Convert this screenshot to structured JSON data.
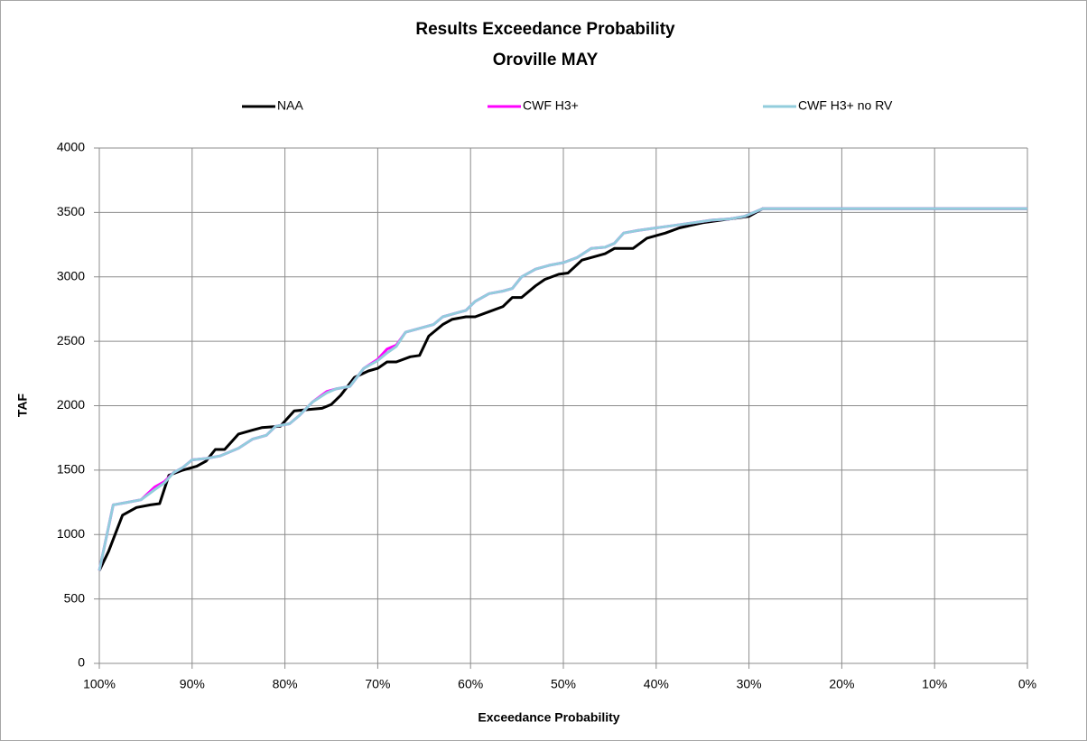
{
  "chart_data": {
    "type": "line",
    "title": "Results Exceedance Probability",
    "subtitle": "Oroville  MAY",
    "x_label": "Exceedance Probability",
    "y_label": "TAF",
    "xlim": [
      100,
      0
    ],
    "xticks": [
      {
        "value": 100,
        "label": "100%"
      },
      {
        "value": 90,
        "label": "90%"
      },
      {
        "value": 80,
        "label": "80%"
      },
      {
        "value": 70,
        "label": "70%"
      },
      {
        "value": 60,
        "label": "60%"
      },
      {
        "value": 50,
        "label": "50%"
      },
      {
        "value": 40,
        "label": "40%"
      },
      {
        "value": 30,
        "label": "30%"
      },
      {
        "value": 20,
        "label": "20%"
      },
      {
        "value": 10,
        "label": "10%"
      },
      {
        "value": 0,
        "label": "0%"
      }
    ],
    "ylim": [
      0,
      4000
    ],
    "yticks": [
      0,
      500,
      1000,
      1500,
      2000,
      2500,
      3000,
      3500,
      4000
    ],
    "grid": true,
    "legend": "top",
    "series": [
      {
        "name": "NAA",
        "color": "#000000",
        "x": [
          100,
          99,
          97.5,
          96,
          94.5,
          93.5,
          92.5,
          91,
          89.5,
          88.5,
          87.5,
          86.5,
          85,
          83.5,
          82.5,
          80.5,
          79,
          77.5,
          76,
          75,
          74,
          72.5,
          71,
          70,
          69,
          68,
          66.5,
          65.5,
          64.5,
          63,
          62,
          60.5,
          59.5,
          58,
          56.5,
          55.5,
          54.5,
          53,
          52,
          50.5,
          49.5,
          48,
          46.5,
          45.5,
          44.5,
          42.5,
          41,
          39,
          37.5,
          35,
          33,
          31,
          30,
          28.5,
          0
        ],
        "values": [
          720,
          870,
          1150,
          1210,
          1230,
          1240,
          1460,
          1500,
          1530,
          1570,
          1660,
          1660,
          1780,
          1810,
          1830,
          1840,
          1960,
          1970,
          1980,
          2010,
          2080,
          2220,
          2270,
          2290,
          2340,
          2340,
          2380,
          2390,
          2540,
          2630,
          2670,
          2690,
          2690,
          2730,
          2770,
          2840,
          2840,
          2930,
          2980,
          3020,
          3030,
          3130,
          3160,
          3180,
          3220,
          3220,
          3300,
          3340,
          3380,
          3420,
          3440,
          3460,
          3470,
          3530,
          3530
        ]
      },
      {
        "name": "CWF H3+",
        "color": "#ff00ff",
        "x": [
          100,
          98.5,
          97,
          95.5,
          94,
          93,
          92,
          91,
          90,
          88.5,
          87,
          85,
          83.5,
          82,
          81,
          79.5,
          78.5,
          77,
          75.5,
          74.5,
          73,
          71.5,
          70,
          69,
          68,
          67,
          65.5,
          64,
          63,
          61.5,
          60.5,
          59.5,
          58,
          56.5,
          55.5,
          54.5,
          53,
          51.5,
          50,
          48.5,
          47,
          45.5,
          44.5,
          43.5,
          42,
          40,
          38,
          36,
          34,
          32,
          30.5,
          28.5,
          0
        ],
        "values": [
          720,
          1230,
          1250,
          1270,
          1370,
          1410,
          1480,
          1520,
          1580,
          1590,
          1610,
          1670,
          1740,
          1770,
          1840,
          1860,
          1920,
          2030,
          2110,
          2130,
          2150,
          2290,
          2360,
          2440,
          2470,
          2570,
          2600,
          2630,
          2690,
          2720,
          2740,
          2810,
          2870,
          2890,
          2910,
          3000,
          3060,
          3090,
          3110,
          3150,
          3220,
          3230,
          3260,
          3340,
          3360,
          3380,
          3400,
          3420,
          3440,
          3450,
          3470,
          3530,
          3530
        ]
      },
      {
        "name": "CWF H3+ no RV",
        "color": "#92cddc",
        "x": [
          100,
          98.5,
          97,
          95.5,
          94,
          93,
          92,
          91,
          90,
          88.5,
          87,
          85,
          83.5,
          82,
          81,
          79.5,
          78.5,
          77,
          75.5,
          74.5,
          73,
          71.5,
          70,
          69,
          68,
          67,
          65.5,
          64,
          63,
          61.5,
          60.5,
          59.5,
          58,
          56.5,
          55.5,
          54.5,
          53,
          51.5,
          50,
          48.5,
          47,
          45.5,
          44.5,
          43.5,
          42,
          40,
          38,
          36,
          34,
          32,
          30.5,
          28.5,
          0
        ],
        "values": [
          720,
          1230,
          1250,
          1270,
          1350,
          1400,
          1480,
          1520,
          1580,
          1590,
          1610,
          1670,
          1740,
          1770,
          1840,
          1860,
          1920,
          2030,
          2100,
          2130,
          2150,
          2290,
          2350,
          2410,
          2460,
          2570,
          2600,
          2630,
          2690,
          2720,
          2740,
          2810,
          2870,
          2890,
          2910,
          3000,
          3060,
          3090,
          3110,
          3150,
          3220,
          3230,
          3260,
          3340,
          3360,
          3380,
          3400,
          3420,
          3440,
          3450,
          3470,
          3530,
          3530
        ]
      }
    ]
  }
}
